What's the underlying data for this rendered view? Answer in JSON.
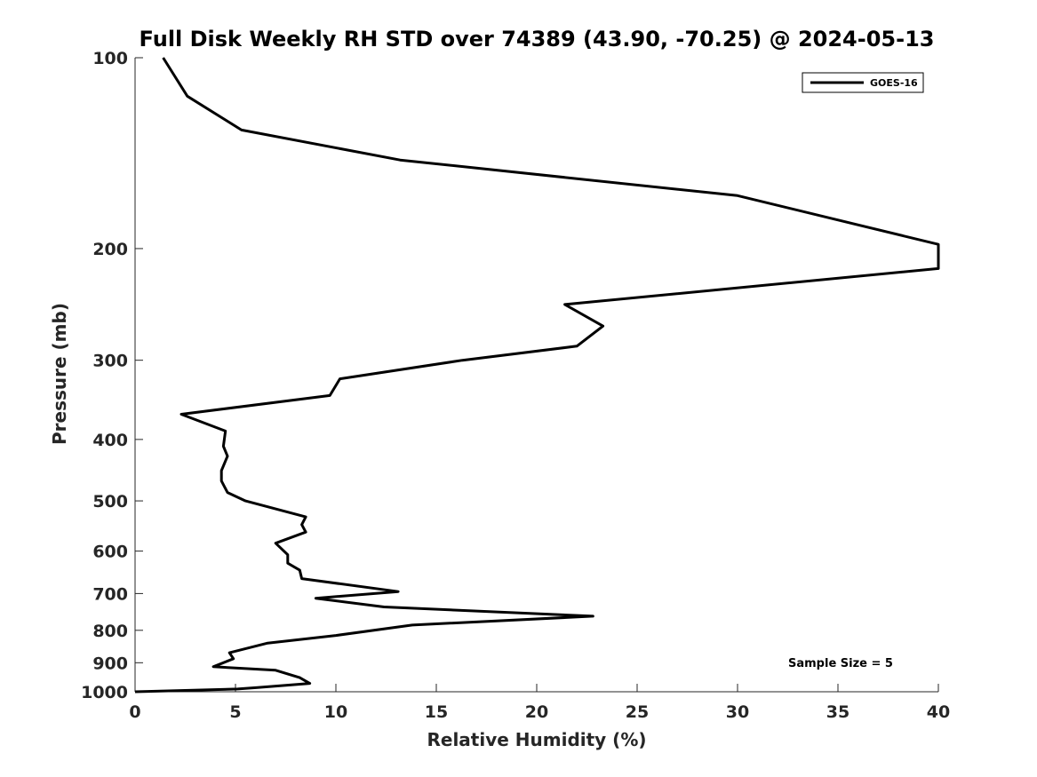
{
  "chart_data": {
    "type": "line",
    "title": "Full Disk Weekly RH STD over 74389 (43.90, -70.25) @ 2024-05-13",
    "xlabel": "Relative Humidity (%)",
    "ylabel": "Pressure (mb)",
    "xlim": [
      0,
      40
    ],
    "ylim": [
      100,
      1000
    ],
    "y_scale": "log",
    "y_reversed": true,
    "x_ticks": [
      0,
      5,
      10,
      15,
      20,
      25,
      30,
      35,
      40
    ],
    "y_ticks": [
      100,
      200,
      300,
      400,
      500,
      600,
      700,
      800,
      900,
      1000
    ],
    "grid": false,
    "legend_position": "top-right",
    "series": [
      {
        "name": "GOES-16",
        "color": "#000000",
        "points": [
          [
            1.4,
            100
          ],
          [
            2.6,
            115
          ],
          [
            5.3,
            130
          ],
          [
            13.2,
            145
          ],
          [
            30,
            165
          ],
          [
            40,
            197
          ],
          [
            40,
            215
          ],
          [
            21.4,
            245
          ],
          [
            23.3,
            265
          ],
          [
            22.0,
            285
          ],
          [
            16.3,
            300
          ],
          [
            10.2,
            321
          ],
          [
            9.7,
            341
          ],
          [
            2.3,
            365
          ],
          [
            4.5,
            388
          ],
          [
            4.4,
            410
          ],
          [
            4.6,
            425
          ],
          [
            4.3,
            448
          ],
          [
            4.3,
            465
          ],
          [
            4.6,
            485
          ],
          [
            5.5,
            500
          ],
          [
            8.5,
            530
          ],
          [
            8.3,
            545
          ],
          [
            8.5,
            560
          ],
          [
            7.0,
            583
          ],
          [
            7.6,
            608
          ],
          [
            7.6,
            627
          ],
          [
            8.2,
            643
          ],
          [
            8.3,
            663
          ],
          [
            13.1,
            695
          ],
          [
            9.0,
            712
          ],
          [
            12.4,
            735
          ],
          [
            22.8,
            760
          ],
          [
            13.8,
            785
          ],
          [
            10.0,
            815
          ],
          [
            6.6,
            838
          ],
          [
            4.7,
            868
          ],
          [
            4.9,
            887
          ],
          [
            3.9,
            913
          ],
          [
            7.0,
            925
          ],
          [
            8.2,
            950
          ],
          [
            8.7,
            970
          ],
          [
            6.1,
            985
          ],
          [
            5.1,
            990
          ],
          [
            0,
            1000
          ]
        ]
      }
    ],
    "annotation": "Sample Size = 5"
  }
}
